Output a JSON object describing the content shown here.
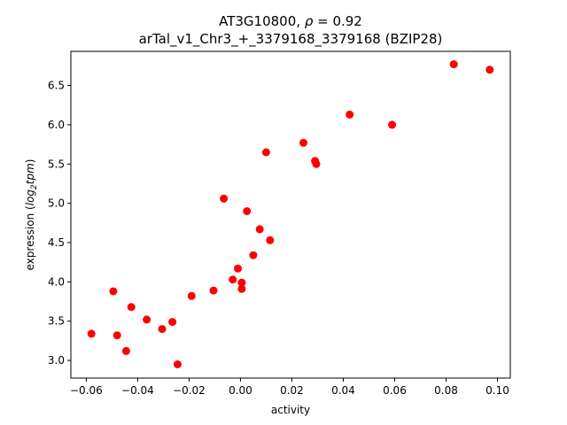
{
  "chart_data": {
    "type": "scatter",
    "title_line1_prefix": "AT3G10800, ",
    "title_rho_symbol": "ρ",
    "title_rho_value": " = 0.92",
    "title_line2": "arTal_v1_Chr3_+_3379168_3379168 (BZIP28)",
    "xlabel": "activity",
    "ylabel_prefix": "expression (",
    "ylabel_log": "log",
    "ylabel_sub": "2",
    "ylabel_tpm": "tpm",
    "ylabel_suffix": ")",
    "xlim": [
      -0.066,
      0.105
    ],
    "ylim": [
      2.775,
      6.935
    ],
    "xticks": [
      -0.06,
      -0.04,
      -0.02,
      0.0,
      0.02,
      0.04,
      0.06,
      0.08,
      0.1
    ],
    "xtick_labels": [
      "−0.06",
      "−0.04",
      "−0.02",
      "0.00",
      "0.02",
      "0.04",
      "0.06",
      "0.08",
      "0.10"
    ],
    "yticks": [
      3.0,
      3.5,
      4.0,
      4.5,
      5.0,
      5.5,
      6.0,
      6.5
    ],
    "ytick_labels": [
      "3.0",
      "3.5",
      "4.0",
      "4.5",
      "5.0",
      "5.5",
      "6.0",
      "6.5"
    ],
    "marker_color": "#ff0000",
    "grid": false,
    "points": [
      {
        "x": -0.058,
        "y": 3.34
      },
      {
        "x": -0.0495,
        "y": 3.88
      },
      {
        "x": -0.048,
        "y": 3.32
      },
      {
        "x": -0.0445,
        "y": 3.12
      },
      {
        "x": -0.0425,
        "y": 3.68
      },
      {
        "x": -0.0365,
        "y": 3.52
      },
      {
        "x": -0.0305,
        "y": 3.4
      },
      {
        "x": -0.0265,
        "y": 3.49
      },
      {
        "x": -0.0245,
        "y": 2.95
      },
      {
        "x": -0.019,
        "y": 3.82
      },
      {
        "x": -0.0105,
        "y": 3.89
      },
      {
        "x": -0.0065,
        "y": 5.06
      },
      {
        "x": -0.003,
        "y": 4.03
      },
      {
        "x": -0.001,
        "y": 4.17
      },
      {
        "x": 0.0005,
        "y": 3.91
      },
      {
        "x": 0.0005,
        "y": 3.99
      },
      {
        "x": 0.0025,
        "y": 4.9
      },
      {
        "x": 0.005,
        "y": 4.34
      },
      {
        "x": 0.0075,
        "y": 4.67
      },
      {
        "x": 0.01,
        "y": 5.65
      },
      {
        "x": 0.0115,
        "y": 4.53
      },
      {
        "x": 0.0245,
        "y": 5.77
      },
      {
        "x": 0.029,
        "y": 5.54
      },
      {
        "x": 0.0295,
        "y": 5.5
      },
      {
        "x": 0.0425,
        "y": 6.13
      },
      {
        "x": 0.059,
        "y": 6.0
      },
      {
        "x": 0.083,
        "y": 6.77
      },
      {
        "x": 0.097,
        "y": 6.7
      }
    ]
  }
}
